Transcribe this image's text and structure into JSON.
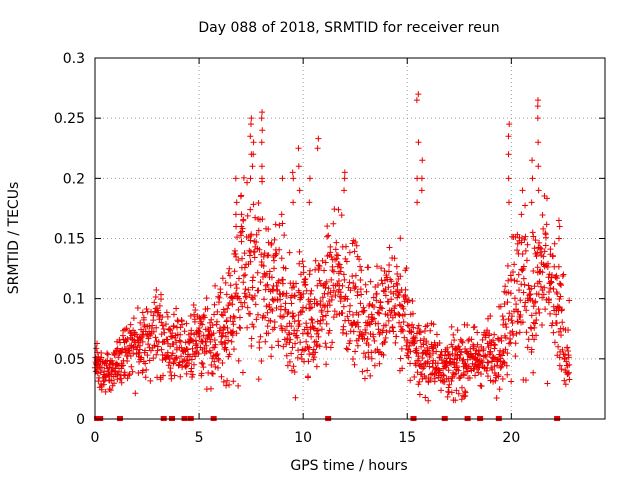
{
  "chart_data": {
    "type": "scatter",
    "title": "Day 088 of 2018, SRMTID for receiver reun",
    "xlabel": "GPS time / hours",
    "ylabel": "SRMTID / TECUs",
    "xlim": [
      0,
      24.5
    ],
    "ylim": [
      0,
      0.3
    ],
    "xticks": [
      "0",
      "5",
      "10",
      "15",
      "20"
    ],
    "xtick_values": [
      0,
      5,
      10,
      15,
      20
    ],
    "yticks": [
      "0",
      "0.05",
      "0.1",
      "0.15",
      "0.2",
      "0.25",
      "0.3"
    ],
    "ytick_values": [
      0,
      0.05,
      0.1,
      0.15,
      0.2,
      0.25,
      0.3
    ],
    "grid": true,
    "marker": "plus",
    "color": "#ee0000",
    "envelope": {
      "description": "approximate central trend of the point cloud (hours, TECU)",
      "x": [
        0.0,
        0.5,
        1.0,
        1.5,
        2.0,
        2.5,
        3.0,
        3.5,
        4.0,
        4.5,
        5.0,
        5.5,
        6.0,
        6.5,
        7.0,
        7.5,
        8.0,
        8.5,
        9.0,
        9.5,
        10.0,
        10.5,
        11.0,
        11.5,
        12.0,
        12.5,
        13.0,
        13.5,
        14.0,
        14.5,
        15.0,
        15.5,
        16.0,
        16.5,
        17.0,
        17.5,
        18.0,
        18.5,
        19.0,
        19.5,
        20.0,
        20.5,
        21.0,
        21.5,
        22.0,
        22.5,
        22.8
      ],
      "center": [
        0.045,
        0.04,
        0.045,
        0.055,
        0.06,
        0.065,
        0.075,
        0.06,
        0.055,
        0.06,
        0.065,
        0.065,
        0.07,
        0.085,
        0.11,
        0.12,
        0.115,
        0.1,
        0.1,
        0.07,
        0.095,
        0.08,
        0.1,
        0.11,
        0.105,
        0.095,
        0.075,
        0.085,
        0.09,
        0.095,
        0.075,
        0.055,
        0.05,
        0.05,
        0.045,
        0.045,
        0.05,
        0.05,
        0.055,
        0.06,
        0.1,
        0.11,
        0.095,
        0.12,
        0.1,
        0.07,
        0.055
      ],
      "spread": [
        0.015,
        0.015,
        0.015,
        0.02,
        0.025,
        0.025,
        0.03,
        0.02,
        0.02,
        0.02,
        0.02,
        0.025,
        0.03,
        0.04,
        0.06,
        0.06,
        0.05,
        0.04,
        0.045,
        0.04,
        0.04,
        0.035,
        0.04,
        0.04,
        0.04,
        0.035,
        0.035,
        0.035,
        0.035,
        0.04,
        0.035,
        0.025,
        0.02,
        0.02,
        0.02,
        0.02,
        0.02,
        0.02,
        0.02,
        0.03,
        0.05,
        0.05,
        0.045,
        0.05,
        0.04,
        0.035,
        0.025
      ]
    },
    "zero_markers_x": [
      0.1,
      0.25,
      1.2,
      3.3,
      3.7,
      4.3,
      4.6,
      5.7,
      11.2,
      15.3,
      16.8,
      17.9,
      18.5,
      19.4,
      22.2
    ],
    "spikes": [
      {
        "x": 6.8,
        "values": [
          0.16,
          0.17,
          0.18,
          0.2
        ]
      },
      {
        "x": 7.0,
        "values": [
          0.16,
          0.17,
          0.185
        ]
      },
      {
        "x": 7.5,
        "values": [
          0.2,
          0.22,
          0.235,
          0.245,
          0.25
        ]
      },
      {
        "x": 7.6,
        "values": [
          0.21,
          0.22,
          0.23
        ]
      },
      {
        "x": 8.0,
        "values": [
          0.2,
          0.21,
          0.23,
          0.24,
          0.25,
          0.255
        ]
      },
      {
        "x": 9.0,
        "values": [
          0.17,
          0.2
        ]
      },
      {
        "x": 9.5,
        "values": [
          0.18,
          0.2,
          0.205
        ]
      },
      {
        "x": 9.8,
        "values": [
          0.19,
          0.21,
          0.225
        ]
      },
      {
        "x": 10.3,
        "values": [
          0.18,
          0.2
        ]
      },
      {
        "x": 10.7,
        "values": [
          0.225,
          0.233
        ]
      },
      {
        "x": 12.0,
        "values": [
          0.19,
          0.2,
          0.205
        ]
      },
      {
        "x": 15.5,
        "values": [
          0.18,
          0.2,
          0.23,
          0.265,
          0.27
        ]
      },
      {
        "x": 15.7,
        "values": [
          0.19,
          0.2,
          0.215
        ]
      },
      {
        "x": 19.9,
        "values": [
          0.18,
          0.2,
          0.22,
          0.235,
          0.245
        ]
      },
      {
        "x": 20.5,
        "values": [
          0.17,
          0.19
        ]
      },
      {
        "x": 21.0,
        "values": [
          0.18,
          0.2,
          0.215
        ]
      },
      {
        "x": 21.3,
        "values": [
          0.19,
          0.21,
          0.23,
          0.25,
          0.26,
          0.265
        ]
      },
      {
        "x": 22.3,
        "values": [
          0.15,
          0.16,
          0.165
        ]
      }
    ]
  }
}
